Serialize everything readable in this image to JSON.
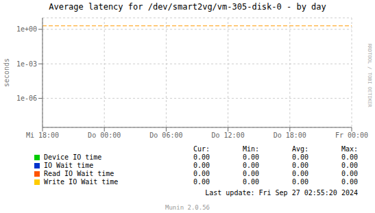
{
  "chart_data": {
    "type": "line",
    "title": "Average latency for /dev/smart2vg/vm-305-disk-0 - by day",
    "ylabel": "seconds",
    "log": "y",
    "grid": true,
    "legend": "bottom",
    "xlim": [
      0,
      5
    ],
    "xticks": [
      {
        "value": 0,
        "label": "Mi 18:00"
      },
      {
        "value": 1,
        "label": "Do 00:00"
      },
      {
        "value": 2,
        "label": "Do 06:00"
      },
      {
        "value": 3,
        "label": "Do 12:00"
      },
      {
        "value": 4,
        "label": "Do 18:00"
      },
      {
        "value": 5,
        "label": "Fr 00:00"
      }
    ],
    "ylim": [
      3e-09,
      10
    ],
    "yticks": [
      {
        "value": 1e-06,
        "label": "1e-06"
      },
      {
        "value": 0.001,
        "label": "1e-03"
      },
      {
        "value": 1,
        "label": "1e+00"
      }
    ],
    "hlines": [
      {
        "y": 2.0,
        "color": "#ff9900",
        "line_style": "dashed"
      }
    ],
    "stats_headers": [
      "Cur:",
      "Min:",
      "Avg:",
      "Max:"
    ],
    "series": [
      {
        "name": "Device IO time",
        "color": "#00cc00",
        "values": [],
        "stats": [
          "0.00",
          "0.00",
          "0.00",
          "0.00"
        ]
      },
      {
        "name": "IO Wait time",
        "color": "#0033cc",
        "values": [],
        "stats": [
          "0.00",
          "0.00",
          "0.00",
          "0.00"
        ]
      },
      {
        "name": "Read IO Wait time",
        "color": "#ff5500",
        "values": [],
        "stats": [
          "0.00",
          "0.00",
          "0.00",
          "0.00"
        ]
      },
      {
        "name": "Write IO Wait time",
        "color": "#ffcc00",
        "values": [],
        "stats": [
          "0.00",
          "0.00",
          "0.00",
          "0.00"
        ]
      }
    ],
    "last_update": "Last update: Fri Sep 27 02:55:20 2024",
    "watermark": "Munin 2.0.56",
    "side_label": "RRDTOOL / TOBI OETIKER"
  }
}
